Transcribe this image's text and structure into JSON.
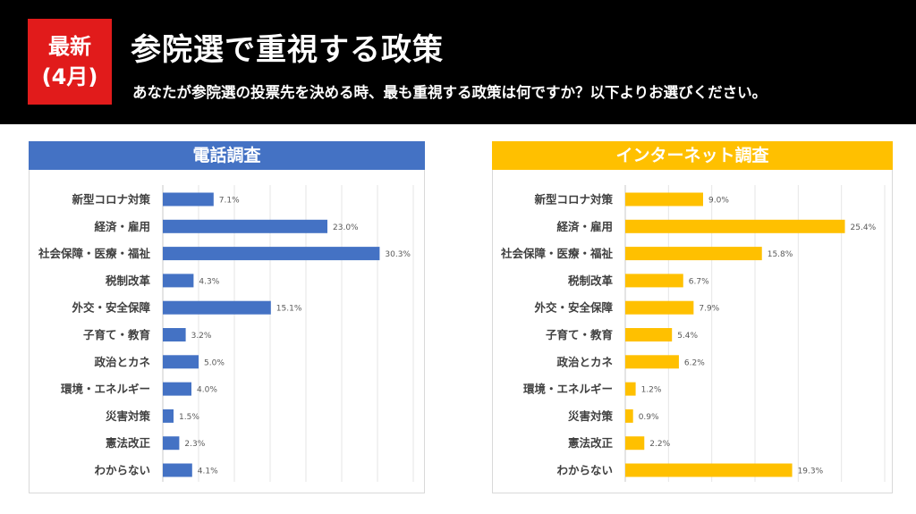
{
  "header": {
    "badge_line1": "最新",
    "badge_line2": "(4月)",
    "title": "参院選で重視する政策",
    "subtitle": "あなたが参院選の投票先を決める時、最も重視する政策は何ですか？以下よりお選びください。",
    "background": "#000000",
    "badge_color": "#e11b1b"
  },
  "chart_data": [
    {
      "type": "bar",
      "orientation": "horizontal",
      "title": "電話調査",
      "color": "#4472c4",
      "categories": [
        "新型コロナ対策",
        "経済・雇用",
        "社会保障・医療・福祉",
        "税制改革",
        "外交・安全保障",
        "子育て・教育",
        "政治とカネ",
        "環境・エネルギー",
        "災害対策",
        "憲法改正",
        "わからない"
      ],
      "values": [
        7.1,
        23.0,
        30.3,
        4.3,
        15.1,
        3.2,
        5.0,
        4.0,
        1.5,
        2.3,
        4.1
      ],
      "labels": [
        "7.1%",
        "23.0%",
        "30.3%",
        "4.3%",
        "15.1%",
        "3.2%",
        "5.0%",
        "4.0%",
        "1.5%",
        "2.3%",
        "4.1%"
      ],
      "xlim": [
        0,
        35
      ],
      "grid": true
    },
    {
      "type": "bar",
      "orientation": "horizontal",
      "title": "インターネット調査",
      "color": "#ffc000",
      "categories": [
        "新型コロナ対策",
        "経済・雇用",
        "社会保障・医療・福祉",
        "税制改革",
        "外交・安全保障",
        "子育て・教育",
        "政治とカネ",
        "環境・エネルギー",
        "災害対策",
        "憲法改正",
        "わからない"
      ],
      "values": [
        9.0,
        25.4,
        15.8,
        6.7,
        7.9,
        5.4,
        6.2,
        1.2,
        0.9,
        2.2,
        19.3
      ],
      "labels": [
        "9.0%",
        "25.4%",
        "15.8%",
        "6.7%",
        "7.9%",
        "5.4%",
        "6.2%",
        "1.2%",
        "0.9%",
        "2.2%",
        "19.3%"
      ],
      "xlim": [
        0,
        30
      ],
      "grid": true
    }
  ]
}
